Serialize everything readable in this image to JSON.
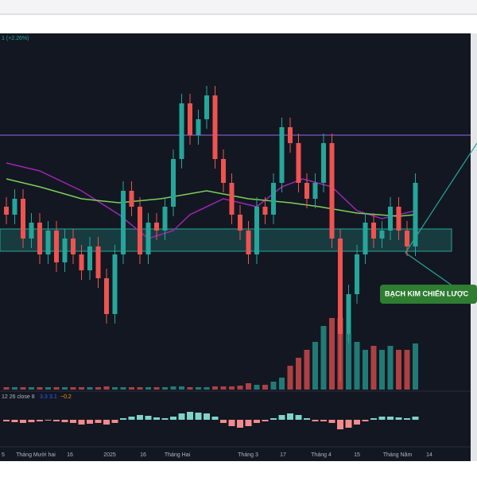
{
  "chart_data": {
    "type": "candlestick",
    "header": "1 (+2.26%)",
    "open": [
      230,
      220,
      240,
      190,
      210,
      170,
      200,
      160,
      190,
      170,
      150,
      180,
      140,
      95,
      170,
      250,
      230,
      170,
      210,
      200,
      230,
      290,
      360,
      320,
      340,
      370,
      290,
      260,
      220,
      200,
      170,
      230,
      220,
      260,
      330,
      310,
      260,
      240,
      260,
      310,
      190,
      70,
      120,
      170,
      210,
      190,
      200,
      230,
      200,
      180
    ],
    "high": [
      242,
      252,
      252,
      222,
      222,
      212,
      212,
      202,
      202,
      182,
      192,
      192,
      152,
      182,
      262,
      262,
      242,
      222,
      222,
      242,
      302,
      372,
      372,
      352,
      382,
      382,
      302,
      272,
      232,
      212,
      242,
      242,
      272,
      342,
      342,
      322,
      272,
      272,
      322,
      322,
      202,
      132,
      182,
      222,
      222,
      212,
      242,
      242,
      212,
      272
    ],
    "low": [
      208,
      208,
      178,
      178,
      158,
      158,
      148,
      148,
      158,
      138,
      138,
      128,
      83,
      83,
      158,
      218,
      158,
      158,
      188,
      188,
      218,
      278,
      308,
      308,
      328,
      278,
      248,
      208,
      188,
      158,
      158,
      208,
      208,
      248,
      298,
      248,
      228,
      228,
      248,
      178,
      10,
      58,
      108,
      158,
      178,
      178,
      188,
      188,
      168,
      168
    ],
    "close": [
      220,
      240,
      190,
      210,
      170,
      200,
      160,
      190,
      170,
      150,
      180,
      140,
      95,
      170,
      250,
      230,
      170,
      210,
      200,
      230,
      290,
      360,
      320,
      340,
      370,
      290,
      260,
      220,
      200,
      170,
      230,
      220,
      260,
      330,
      310,
      260,
      240,
      260,
      310,
      190,
      70,
      120,
      170,
      210,
      190,
      200,
      230,
      200,
      180,
      260
    ],
    "volume": [
      3,
      3,
      3,
      3,
      3,
      3,
      3,
      3,
      3,
      3,
      3,
      3,
      4,
      3,
      3,
      3,
      3,
      3,
      3,
      3,
      4,
      4,
      3,
      3,
      3,
      4,
      4,
      4,
      5,
      8,
      6,
      6,
      10,
      15,
      30,
      40,
      50,
      60,
      80,
      90,
      90,
      70,
      60,
      50,
      55,
      50,
      55,
      50,
      50,
      58
    ],
    "ylim": [
      0,
      448
    ],
    "volume_lim": [
      0,
      100
    ],
    "up_color": "#26a69a",
    "down_color": "#ef5350",
    "lines": [
      {
        "color": "#9c27b0",
        "x": [
          0,
          4,
          9,
          13.5,
          17,
          20,
          22,
          26,
          30,
          33,
          35.5,
          39,
          42,
          45,
          49
        ],
        "values": [
          285,
          275,
          250,
          220,
          190,
          200,
          220,
          240,
          230,
          255,
          265,
          255,
          225,
          215,
          225
        ]
      },
      {
        "color": "#7ccf5a",
        "x": [
          0,
          4,
          9,
          13.5,
          18.5,
          24,
          29,
          34,
          37.5,
          42,
          47,
          49
        ],
        "values": [
          265,
          255,
          240,
          235,
          240,
          250,
          240,
          235,
          230,
          222,
          218,
          220
        ]
      }
    ],
    "level": {
      "value": 320,
      "color": "#7e57c2"
    },
    "zone": [
      174,
      202
    ],
    "annotation": "BẠCH KIM CHIẾN LƯỢC",
    "macd": {
      "label": "12 26 close 8",
      "legend_values": [
        "3.3",
        "3.1",
        "−0.2"
      ],
      "values": [
        -2,
        -3,
        -4,
        -3,
        -2,
        -1,
        -2,
        -3,
        -4,
        -6,
        -5,
        -4,
        -6,
        -4,
        2,
        4,
        6,
        5,
        3,
        2,
        4,
        8,
        10,
        9,
        8,
        4,
        -4,
        -8,
        -10,
        -8,
        -4,
        -2,
        2,
        6,
        8,
        6,
        2,
        -2,
        -2,
        -4,
        -12,
        -10,
        -6,
        -2,
        2,
        4,
        4,
        3,
        2,
        4
      ],
      "ylim": [
        -30,
        30
      ]
    },
    "x_labels": [
      "5",
      "Tháng Mười hai",
      "16",
      "2025",
      "16",
      "Tháng Hai",
      "Tháng 3",
      "17",
      "Tháng 4",
      "15",
      "Tháng Năm",
      "14"
    ]
  }
}
